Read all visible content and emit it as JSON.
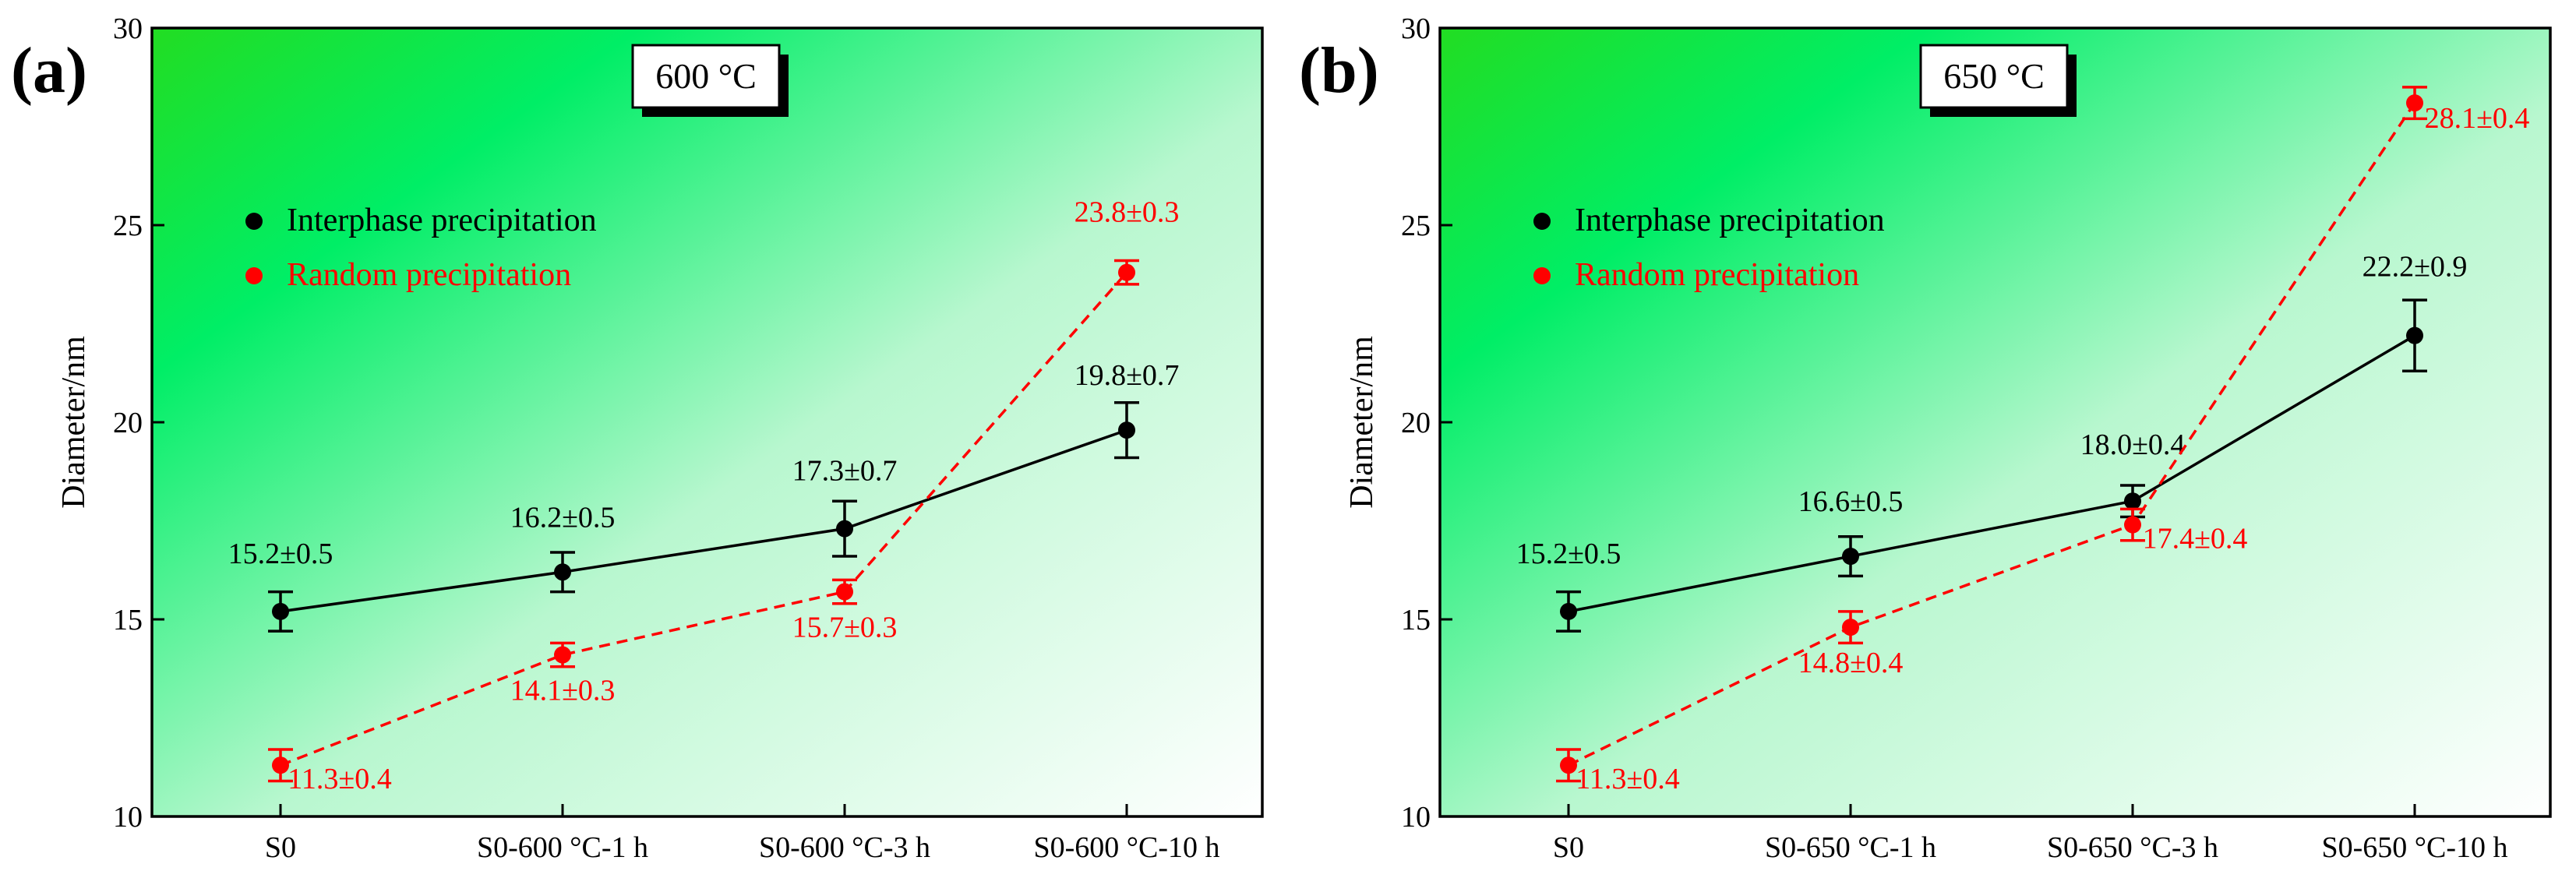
{
  "chart_data": [
    {
      "type": "line",
      "panel_label": "(a)",
      "title": "600 °C",
      "xlabel": "",
      "ylabel": "Diameter/nm",
      "ylim": [
        10,
        30
      ],
      "yticks": [
        "10",
        "15",
        "20",
        "25",
        "30"
      ],
      "categories": [
        "S0",
        "S0-600 °C-1 h",
        "S0-600 °C-3 h",
        "S0-600 °C-10 h"
      ],
      "series": [
        {
          "name": "Interphase precipitation",
          "color": "#000000",
          "line_style": "solid",
          "values": [
            15.2,
            16.2,
            17.3,
            19.8
          ],
          "errors": [
            0.5,
            0.5,
            0.7,
            0.7
          ],
          "labels": [
            "15.2±0.5",
            "16.2±0.5",
            "17.3±0.7",
            "19.8±0.7"
          ]
        },
        {
          "name": "Random precipitation",
          "color": "#ff0000",
          "line_style": "dashed",
          "values": [
            11.3,
            14.1,
            15.7,
            23.8
          ],
          "errors": [
            0.4,
            0.3,
            0.3,
            0.3
          ],
          "labels": [
            "11.3±0.4",
            "14.1±0.3",
            "15.7±0.3",
            "23.8±0.3"
          ]
        }
      ],
      "legend_position": "upper-left",
      "grid": false
    },
    {
      "type": "line",
      "panel_label": "(b)",
      "title": "650 °C",
      "xlabel": "",
      "ylabel": "Diameter/nm",
      "ylim": [
        10,
        30
      ],
      "yticks": [
        "10",
        "15",
        "20",
        "25",
        "30"
      ],
      "categories": [
        "S0",
        "S0-650 °C-1 h",
        "S0-650 °C-3 h",
        "S0-650 °C-10 h"
      ],
      "series": [
        {
          "name": "Interphase precipitation",
          "color": "#000000",
          "line_style": "solid",
          "values": [
            15.2,
            16.6,
            18.0,
            22.2
          ],
          "errors": [
            0.5,
            0.5,
            0.4,
            0.9
          ],
          "labels": [
            "15.2±0.5",
            "16.6±0.5",
            "18.0±0.4",
            "22.2±0.9"
          ]
        },
        {
          "name": "Random precipitation",
          "color": "#ff0000",
          "line_style": "dashed",
          "values": [
            11.3,
            14.8,
            17.4,
            28.1
          ],
          "errors": [
            0.4,
            0.4,
            0.4,
            0.4
          ],
          "labels": [
            "11.3±0.4",
            "14.8±0.4",
            "17.4±0.4",
            "28.1±0.4"
          ]
        }
      ],
      "legend_position": "upper-left",
      "grid": false
    }
  ]
}
